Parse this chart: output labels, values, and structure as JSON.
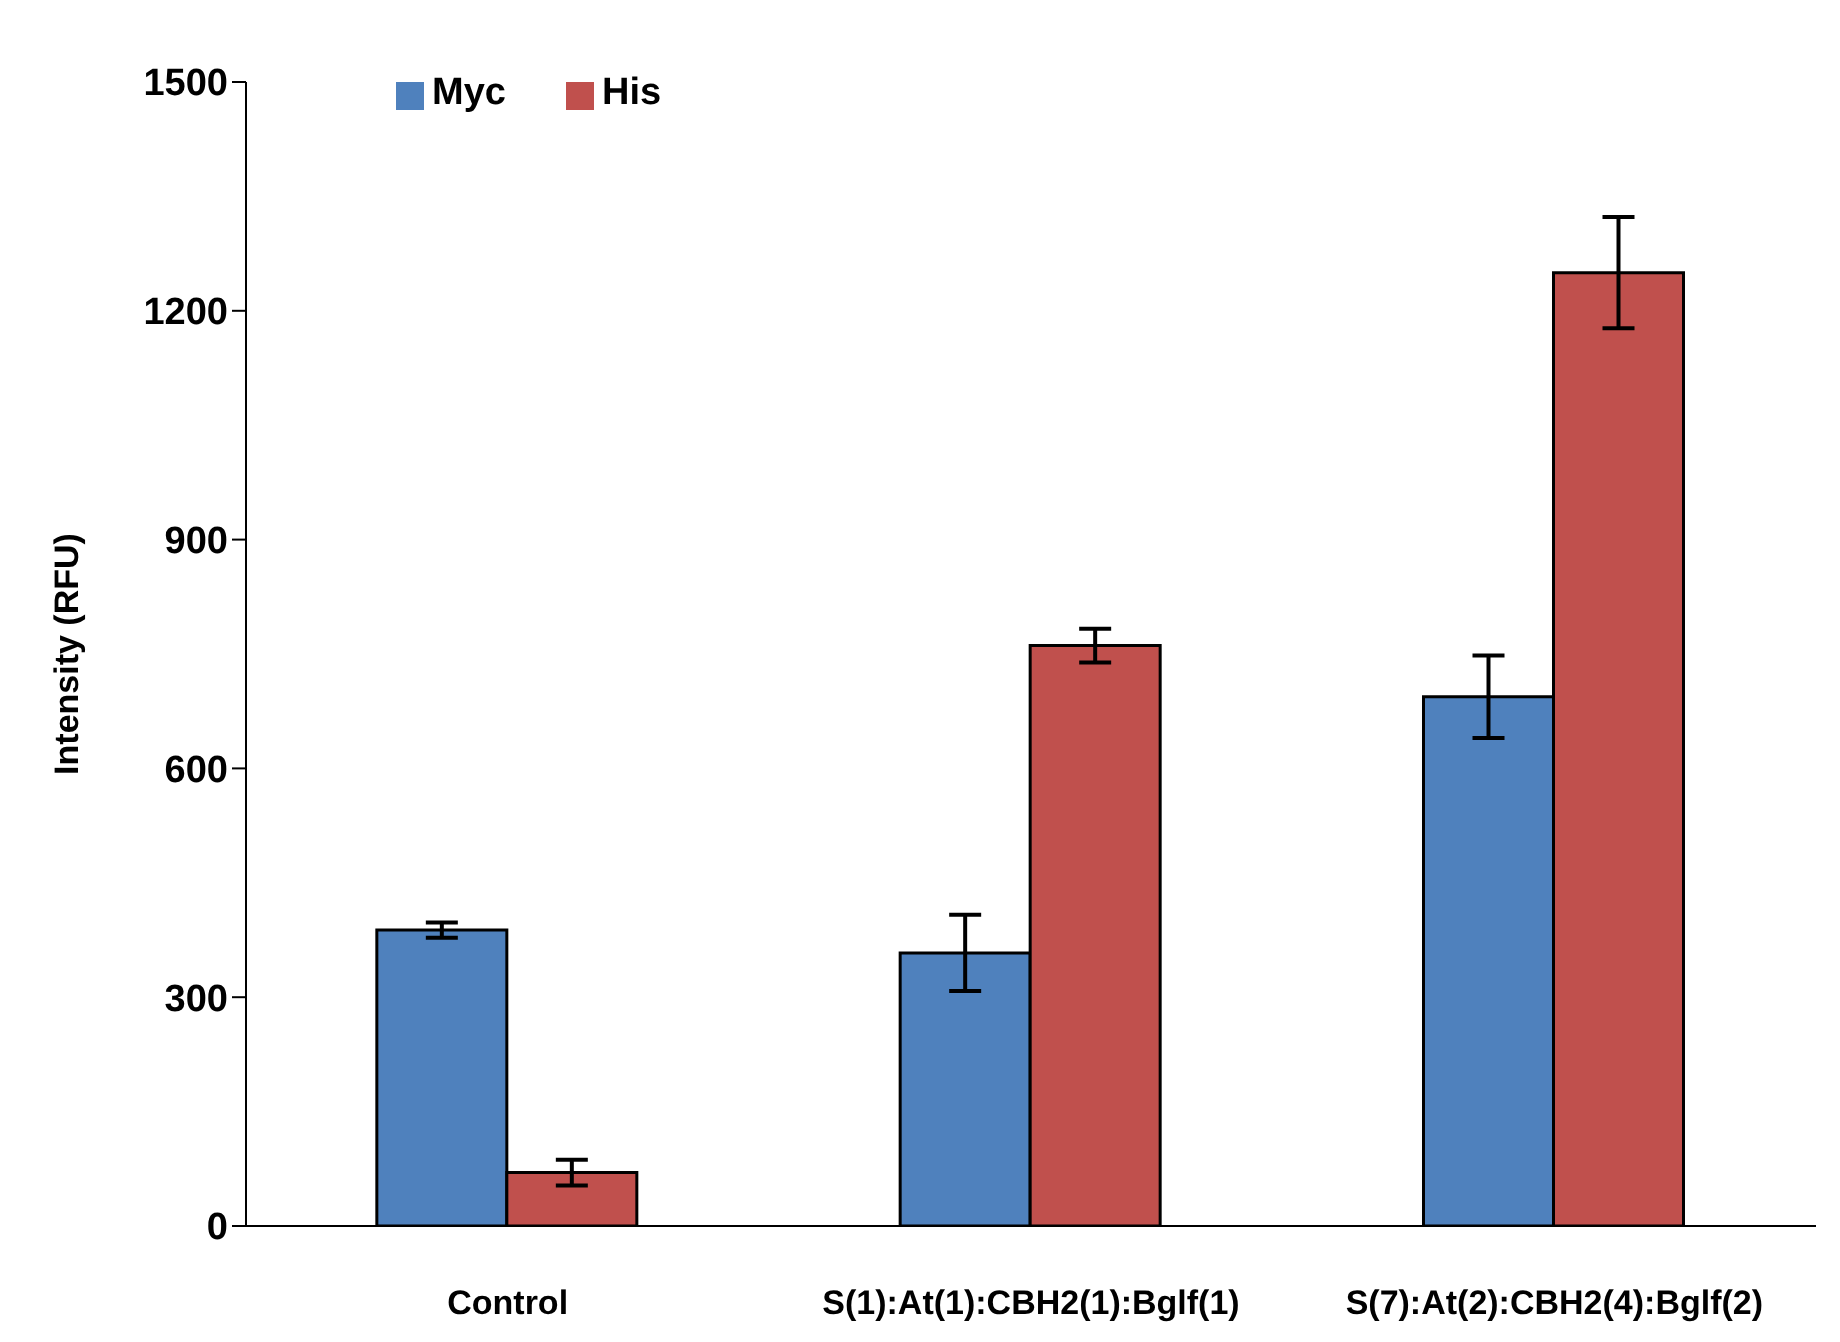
{
  "chart_data": {
    "type": "bar",
    "ylabel": "Intensity (RFU)",
    "categories": [
      "Control",
      "S(1):At(1):CBH2(1):Bglf(1)",
      "S(7):At(2):CBH2(4):Bglf(2)"
    ],
    "series": [
      {
        "name": "Myc",
        "color": "#4f81bd",
        "values": [
          388,
          358,
          694
        ],
        "errors": [
          10,
          50,
          54
        ]
      },
      {
        "name": "His",
        "color": "#c0504d",
        "values": [
          70,
          761,
          1250
        ],
        "errors": [
          17,
          22,
          73
        ]
      }
    ],
    "ylim": [
      0,
      1500
    ],
    "yticks": [
      0,
      300,
      600,
      900,
      1200,
      1500
    ],
    "grid": false,
    "legend": "top left"
  }
}
